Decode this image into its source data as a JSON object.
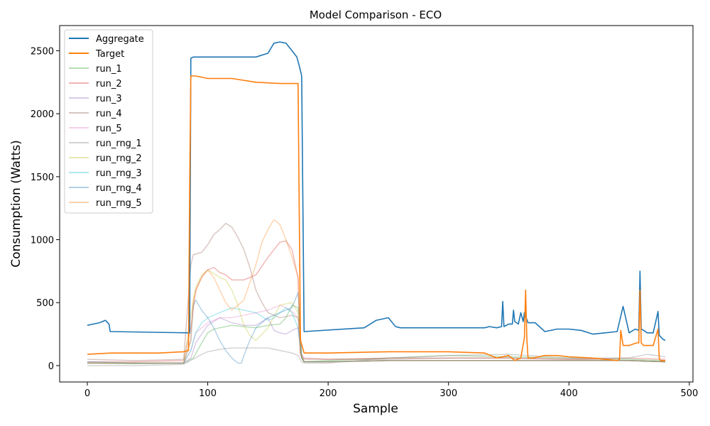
{
  "chart_data": {
    "type": "line",
    "title": "Model Comparison - ECO",
    "xlabel": "Sample",
    "ylabel": "Consumption (Watts)",
    "xlim": [
      -23,
      503
    ],
    "ylim": [
      -130,
      2700
    ],
    "xticks": [
      0,
      100,
      200,
      300,
      400,
      500
    ],
    "yticks": [
      0,
      500,
      1000,
      1500,
      2000,
      2500
    ],
    "grid": false,
    "legend_position": "top-left",
    "series": [
      {
        "name": "Aggregate",
        "color": "#1f77b4",
        "opacity": 1.0,
        "width": 1.6,
        "x": [
          0,
          10,
          15,
          18,
          19,
          84,
          85,
          86,
          88,
          140,
          150,
          155,
          160,
          165,
          170,
          174,
          176,
          178,
          180,
          230,
          240,
          250,
          256,
          260,
          300,
          330,
          334,
          340,
          344,
          345,
          346,
          350,
          353,
          354,
          355,
          358,
          360,
          362,
          363,
          366,
          370,
          372,
          380,
          390,
          400,
          410,
          420,
          430,
          440,
          445,
          450,
          455,
          458,
          459,
          460,
          462,
          465,
          470,
          474,
          475,
          476,
          478,
          480
        ],
        "y": [
          320,
          340,
          360,
          330,
          270,
          260,
          260,
          2440,
          2450,
          2450,
          2480,
          2560,
          2570,
          2560,
          2500,
          2450,
          2380,
          2300,
          270,
          300,
          360,
          380,
          310,
          300,
          300,
          300,
          310,
          300,
          310,
          510,
          310,
          330,
          330,
          440,
          350,
          330,
          420,
          350,
          420,
          340,
          340,
          340,
          270,
          290,
          290,
          280,
          250,
          260,
          270,
          470,
          260,
          290,
          280,
          750,
          290,
          280,
          260,
          260,
          430,
          240,
          230,
          210,
          200
        ]
      },
      {
        "name": "Target",
        "color": "#ff7f0e",
        "opacity": 1.0,
        "width": 1.6,
        "x": [
          0,
          20,
          40,
          60,
          80,
          84,
          85,
          86,
          90,
          100,
          120,
          140,
          160,
          170,
          175,
          176,
          177,
          180,
          200,
          250,
          300,
          330,
          340,
          350,
          355,
          360,
          363,
          364,
          365,
          366,
          370,
          380,
          390,
          400,
          420,
          440,
          442,
          443,
          445,
          450,
          456,
          458,
          459,
          460,
          462,
          470,
          474,
          475,
          476,
          480
        ],
        "y": [
          90,
          100,
          100,
          100,
          110,
          120,
          1400,
          2300,
          2300,
          2280,
          2280,
          2250,
          2240,
          2240,
          2240,
          1200,
          200,
          100,
          100,
          110,
          110,
          100,
          60,
          80,
          40,
          60,
          220,
          600,
          220,
          60,
          60,
          80,
          80,
          70,
          60,
          40,
          50,
          280,
          160,
          160,
          180,
          180,
          600,
          180,
          160,
          160,
          290,
          60,
          40,
          40
        ]
      },
      {
        "name": "run_1",
        "color": "#2ca02c",
        "opacity": 0.35,
        "width": 1.4,
        "x": [
          0,
          40,
          80,
          88,
          95,
          100,
          105,
          110,
          120,
          130,
          140,
          150,
          160,
          165,
          170,
          175,
          178,
          180,
          200,
          250,
          300,
          350,
          400,
          450,
          480
        ],
        "y": [
          20,
          15,
          20,
          60,
          180,
          260,
          290,
          300,
          320,
          310,
          300,
          320,
          330,
          380,
          480,
          460,
          60,
          30,
          40,
          60,
          80,
          70,
          60,
          50,
          40
        ]
      },
      {
        "name": "run_2",
        "color": "#d62728",
        "opacity": 0.35,
        "width": 1.4,
        "x": [
          0,
          40,
          80,
          86,
          90,
          95,
          100,
          105,
          110,
          115,
          120,
          130,
          140,
          150,
          155,
          160,
          165,
          170,
          175,
          177,
          180,
          200,
          250,
          300,
          350,
          400,
          450,
          480
        ],
        "y": [
          30,
          30,
          40,
          300,
          600,
          700,
          760,
          780,
          740,
          720,
          680,
          680,
          720,
          860,
          920,
          980,
          990,
          920,
          700,
          100,
          60,
          50,
          60,
          60,
          60,
          50,
          60,
          50
        ]
      },
      {
        "name": "run_3",
        "color": "#9467bd",
        "opacity": 0.35,
        "width": 1.4,
        "x": [
          0,
          40,
          80,
          86,
          90,
          100,
          110,
          120,
          130,
          140,
          150,
          155,
          160,
          165,
          170,
          175,
          178,
          180,
          200,
          250,
          300,
          350,
          400,
          450,
          480
        ],
        "y": [
          20,
          20,
          20,
          60,
          180,
          320,
          380,
          340,
          320,
          320,
          380,
          280,
          260,
          250,
          280,
          300,
          60,
          30,
          30,
          40,
          40,
          40,
          40,
          40,
          30
        ]
      },
      {
        "name": "run_4",
        "color": "#8c564b",
        "opacity": 0.35,
        "width": 1.4,
        "x": [
          0,
          40,
          80,
          86,
          88,
          95,
          100,
          105,
          110,
          115,
          120,
          125,
          130,
          135,
          140,
          145,
          150,
          160,
          170,
          175,
          177,
          180,
          200,
          250,
          300,
          350,
          400,
          450,
          480
        ],
        "y": [
          50,
          40,
          50,
          800,
          880,
          900,
          960,
          1040,
          1080,
          1130,
          1100,
          1020,
          920,
          780,
          600,
          500,
          420,
          380,
          400,
          380,
          80,
          50,
          50,
          50,
          60,
          60,
          50,
          40,
          30
        ]
      },
      {
        "name": "run_5",
        "color": "#e377c2",
        "opacity": 0.35,
        "width": 1.4,
        "x": [
          0,
          40,
          80,
          86,
          90,
          100,
          110,
          120,
          130,
          140,
          150,
          160,
          165,
          170,
          175,
          178,
          180,
          200,
          250,
          300,
          350,
          400,
          450,
          480
        ],
        "y": [
          20,
          20,
          20,
          120,
          260,
          340,
          380,
          380,
          400,
          420,
          440,
          480,
          460,
          430,
          380,
          60,
          30,
          30,
          40,
          40,
          40,
          40,
          40,
          30
        ]
      },
      {
        "name": "run_rng_1",
        "color": "#7f7f7f",
        "opacity": 0.35,
        "width": 1.4,
        "x": [
          0,
          40,
          80,
          86,
          95,
          100,
          110,
          120,
          130,
          140,
          150,
          160,
          170,
          175,
          178,
          180,
          200,
          250,
          300,
          350,
          400,
          450,
          465,
          480
        ],
        "y": [
          0,
          0,
          10,
          40,
          90,
          110,
          130,
          140,
          140,
          140,
          140,
          120,
          100,
          80,
          30,
          20,
          20,
          60,
          80,
          90,
          60,
          60,
          90,
          70
        ]
      },
      {
        "name": "run_rng_2",
        "color": "#bcbd22",
        "opacity": 0.35,
        "width": 1.4,
        "x": [
          0,
          40,
          80,
          86,
          90,
          95,
          100,
          105,
          110,
          115,
          120,
          125,
          130,
          135,
          140,
          150,
          160,
          170,
          175,
          178,
          180,
          200,
          250,
          300,
          350,
          400,
          450,
          480
        ],
        "y": [
          20,
          20,
          20,
          400,
          620,
          720,
          760,
          730,
          700,
          680,
          600,
          480,
          320,
          240,
          200,
          300,
          480,
          500,
          420,
          60,
          30,
          30,
          40,
          40,
          40,
          40,
          40,
          30
        ]
      },
      {
        "name": "run_rng_3",
        "color": "#17becf",
        "opacity": 0.35,
        "width": 1.4,
        "x": [
          0,
          40,
          80,
          86,
          90,
          95,
          100,
          110,
          120,
          130,
          140,
          150,
          155,
          160,
          165,
          170,
          175,
          178,
          180,
          200,
          250,
          300,
          350,
          400,
          450,
          480
        ],
        "y": [
          20,
          20,
          20,
          120,
          260,
          340,
          380,
          420,
          460,
          440,
          420,
          360,
          380,
          420,
          460,
          420,
          300,
          60,
          30,
          30,
          40,
          40,
          40,
          40,
          40,
          30
        ]
      },
      {
        "name": "run_rng_4",
        "color": "#1f77b4",
        "opacity": 0.35,
        "width": 1.4,
        "x": [
          0,
          40,
          80,
          86,
          88,
          90,
          95,
          100,
          105,
          110,
          115,
          120,
          125,
          128,
          130,
          135,
          140,
          150,
          160,
          170,
          175,
          178,
          180,
          200,
          250,
          300,
          350,
          400,
          450,
          480
        ],
        "y": [
          30,
          20,
          20,
          200,
          480,
          520,
          440,
          380,
          300,
          200,
          120,
          60,
          20,
          20,
          80,
          200,
          300,
          380,
          420,
          460,
          580,
          80,
          30,
          30,
          40,
          40,
          40,
          40,
          40,
          30
        ]
      },
      {
        "name": "run_rng_5",
        "color": "#ff7f0e",
        "opacity": 0.35,
        "width": 1.4,
        "x": [
          0,
          40,
          80,
          86,
          88,
          92,
          96,
          100,
          105,
          110,
          115,
          120,
          130,
          140,
          145,
          150,
          155,
          160,
          165,
          170,
          175,
          177,
          180,
          200,
          250,
          300,
          350,
          400,
          450,
          480
        ],
        "y": [
          20,
          20,
          20,
          200,
          520,
          640,
          720,
          760,
          700,
          600,
          500,
          440,
          520,
          800,
          980,
          1080,
          1160,
          1120,
          1000,
          860,
          700,
          100,
          30,
          30,
          40,
          40,
          40,
          40,
          40,
          30
        ]
      }
    ]
  }
}
